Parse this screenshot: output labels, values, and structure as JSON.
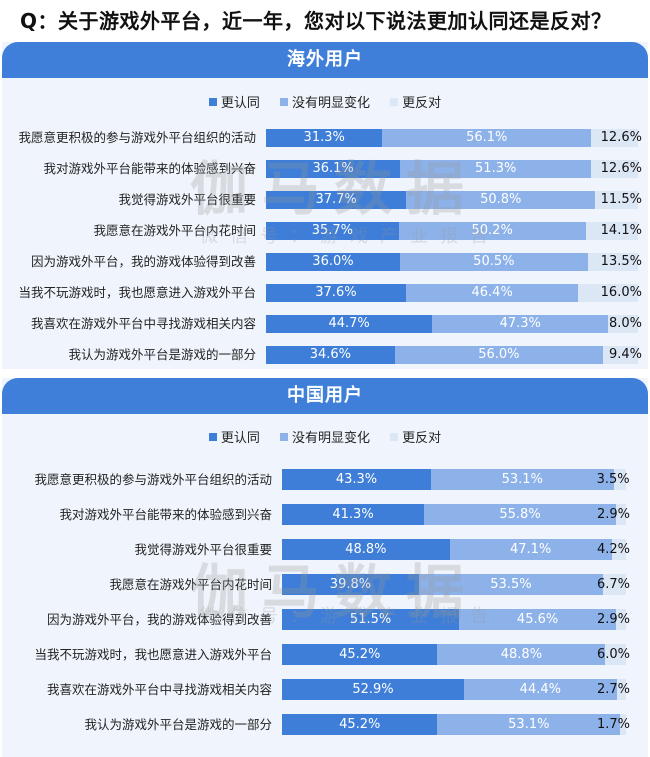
{
  "title": "Q：关于游戏外平台，近一年，您对以下说法更加认同还是反对？",
  "legend": [
    {
      "label": "更认同",
      "color": "#3e7ed8"
    },
    {
      "label": "没有明显变化",
      "color": "#8db2ea"
    },
    {
      "label": "更反对",
      "color": "#dce7f6"
    }
  ],
  "watermark": {
    "main": "伽马数据",
    "sub": "微信号：游戏产业报告"
  },
  "panels": [
    {
      "header": "海外用户",
      "rows": [
        {
          "label": "我愿意更积极的参与游戏外平台组织的活动",
          "agree": "31.3%",
          "neutral": "56.1%",
          "disagree": "12.6%"
        },
        {
          "label": "我对游戏外平台能带来的体验感到兴奋",
          "agree": "36.1%",
          "neutral": "51.3%",
          "disagree": "12.6%"
        },
        {
          "label": "我觉得游戏外平台很重要",
          "agree": "37.7%",
          "neutral": "50.8%",
          "disagree": "11.5%"
        },
        {
          "label": "我愿意在游戏外平台内花时间",
          "agree": "35.7%",
          "neutral": "50.2%",
          "disagree": "14.1%"
        },
        {
          "label": "因为游戏外平台，我的游戏体验得到改善",
          "agree": "36.0%",
          "neutral": "50.5%",
          "disagree": "13.5%"
        },
        {
          "label": "当我不玩游戏时，我也愿意进入游戏外平台",
          "agree": "37.6%",
          "neutral": "46.4%",
          "disagree": "16.0%"
        },
        {
          "label": "我喜欢在游戏外平台中寻找游戏相关内容",
          "agree": "44.7%",
          "neutral": "47.3%",
          "disagree": "8.0%"
        },
        {
          "label": "我认为游戏外平台是游戏的一部分",
          "agree": "34.6%",
          "neutral": "56.0%",
          "disagree": "9.4%"
        }
      ]
    },
    {
      "header": "中国用户",
      "rows": [
        {
          "label": "我愿意更积极的参与游戏外平台组织的活动",
          "agree": "43.3%",
          "neutral": "53.1%",
          "disagree": "3.5%"
        },
        {
          "label": "我对游戏外平台能带来的体验感到兴奋",
          "agree": "41.3%",
          "neutral": "55.8%",
          "disagree": "2.9%"
        },
        {
          "label": "我觉得游戏外平台很重要",
          "agree": "48.8%",
          "neutral": "47.1%",
          "disagree": "4.2%"
        },
        {
          "label": "我愿意在游戏外平台内花时间",
          "agree": "39.8%",
          "neutral": "53.5%",
          "disagree": "6.7%"
        },
        {
          "label": "因为游戏外平台，我的游戏体验得到改善",
          "agree": "51.5%",
          "neutral": "45.6%",
          "disagree": "2.9%"
        },
        {
          "label": "当我不玩游戏时，我也愿意进入游戏外平台",
          "agree": "45.2%",
          "neutral": "48.8%",
          "disagree": "6.0%"
        },
        {
          "label": "我喜欢在游戏外平台中寻找游戏相关内容",
          "agree": "52.9%",
          "neutral": "44.4%",
          "disagree": "2.7%"
        },
        {
          "label": "我认为游戏外平台是游戏的一部分",
          "agree": "45.2%",
          "neutral": "53.1%",
          "disagree": "1.7%"
        }
      ]
    }
  ],
  "chart_data": [
    {
      "type": "bar",
      "orientation": "horizontal",
      "stacked": true,
      "title": "海外用户",
      "categories": [
        "我愿意更积极的参与游戏外平台组织的活动",
        "我对游戏外平台能带来的体验感到兴奋",
        "我觉得游戏外平台很重要",
        "我愿意在游戏外平台内花时间",
        "因为游戏外平台，我的游戏体验得到改善",
        "当我不玩游戏时，我也愿意进入游戏外平台",
        "我喜欢在游戏外平台中寻找游戏相关内容",
        "我认为游戏外平台是游戏的一部分"
      ],
      "series": [
        {
          "name": "更认同",
          "color": "#3e7ed8",
          "values": [
            31.3,
            36.1,
            37.7,
            35.7,
            36.0,
            37.6,
            44.7,
            34.6
          ]
        },
        {
          "name": "没有明显变化",
          "color": "#8db2ea",
          "values": [
            56.1,
            51.3,
            50.8,
            50.2,
            50.5,
            46.4,
            47.3,
            56.0
          ]
        },
        {
          "name": "更反对",
          "color": "#dce7f6",
          "values": [
            12.6,
            12.6,
            11.5,
            14.1,
            13.5,
            16.0,
            8.0,
            9.4
          ]
        }
      ],
      "legend_position": "top",
      "grid": false,
      "unit": "%"
    },
    {
      "type": "bar",
      "orientation": "horizontal",
      "stacked": true,
      "title": "中国用户",
      "categories": [
        "我愿意更积极的参与游戏外平台组织的活动",
        "我对游戏外平台能带来的体验感到兴奋",
        "我觉得游戏外平台很重要",
        "我愿意在游戏外平台内花时间",
        "因为游戏外平台，我的游戏体验得到改善",
        "当我不玩游戏时，我也愿意进入游戏外平台",
        "我喜欢在游戏外平台中寻找游戏相关内容",
        "我认为游戏外平台是游戏的一部分"
      ],
      "series": [
        {
          "name": "更认同",
          "color": "#3e7ed8",
          "values": [
            43.3,
            41.3,
            48.8,
            39.8,
            51.5,
            45.2,
            52.9,
            45.2
          ]
        },
        {
          "name": "没有明显变化",
          "color": "#8db2ea",
          "values": [
            53.1,
            55.8,
            47.1,
            53.5,
            45.6,
            48.8,
            44.4,
            53.1
          ]
        },
        {
          "name": "更反对",
          "color": "#dce7f6",
          "values": [
            3.5,
            2.9,
            4.2,
            6.7,
            2.9,
            6.0,
            2.7,
            1.7
          ]
        }
      ],
      "legend_position": "top",
      "grid": false,
      "unit": "%"
    }
  ]
}
